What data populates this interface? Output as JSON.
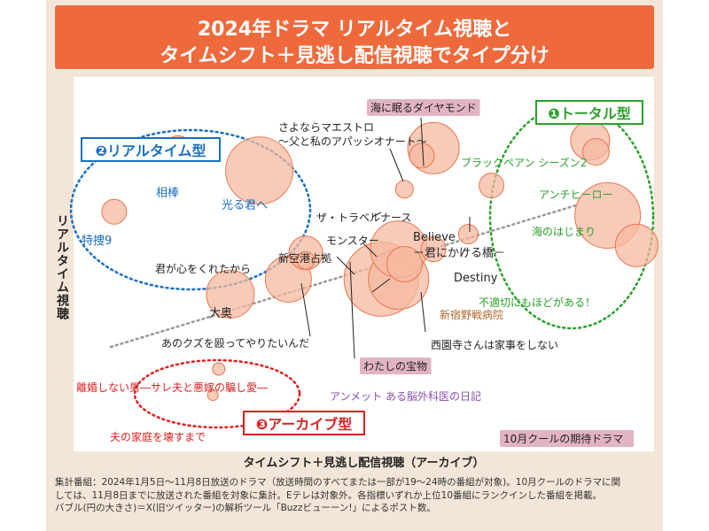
{
  "title": {
    "line1": "2024年ドラマ リアルタイム視聴と",
    "line2": "タイムシフト＋見逃し配信視聴でタイプ分け"
  },
  "footnote": {
    "line1": "集計番組：2024年1月5日～11月8日放送のドラマ（放送時間のすべてまたは一部が19～24時の番組が対象)。10月クールのドラマに関",
    "line2": "しては、11月8日までに放送された番組を対象に集計。Eテレは対象外。各指標いずれか上位10番組にランクインした番組を掲載。",
    "line3": "バブル(円の大きさ)＝X(旧ツイッター)の解析ツール「Buzzビューーン!」によるポスト数。"
  },
  "colors": {
    "title_bg": "#ee6a3c",
    "bubble_fill": "#f6b9a0",
    "bubble_stroke": "#e8754f",
    "realtime": "#1a6fc0",
    "total": "#2aa02a",
    "archive": "#dd2020",
    "purple": "#8a4fb0",
    "brown": "#b0682e",
    "pink_box": "#e2b4c2"
  },
  "chart_data": {
    "type": "bubble",
    "xlabel": "タイムシフト＋見逃し配信視聴（アーカイブ）",
    "ylabel": "リアルタイム視聴",
    "trend_line": "dotted",
    "groups": [
      {
        "label": "❷リアルタイム型",
        "color": "#1a6fc0"
      },
      {
        "label": "❶トータル型",
        "color": "#2aa02a"
      },
      {
        "label": "❸アーカイブ型",
        "color": "#dd2020"
      }
    ],
    "legend_box": "10月クールの期待ドラマ",
    "series": [
      {
        "name": "特捜9",
        "x": 0.07,
        "y": 0.64,
        "size": 14,
        "group": "realtime"
      },
      {
        "name": "相棒",
        "x": 0.18,
        "y": 0.81,
        "size": 14,
        "group": "realtime"
      },
      {
        "name": "光る君へ",
        "x": 0.32,
        "y": 0.75,
        "size": 38,
        "group": "realtime"
      },
      {
        "name": "大奥",
        "x": 0.27,
        "y": 0.42,
        "size": 27,
        "group": "other"
      },
      {
        "name": "君が心をくれたから",
        "x": 0.37,
        "y": 0.46,
        "size": 26,
        "group": "other"
      },
      {
        "name": "新空港占拠",
        "x": 0.4,
        "y": 0.53,
        "size": 19,
        "group": "other"
      },
      {
        "name": "あのクズを殴ってやりたいんだ",
        "x": 0.4,
        "y": 0.51,
        "size": 10,
        "group": "other"
      },
      {
        "name": "モンスター",
        "x": 0.56,
        "y": 0.54,
        "size": 32,
        "group": "other"
      },
      {
        "name": "わたしの宝物",
        "x": 0.53,
        "y": 0.46,
        "size": 42,
        "group": "other"
      },
      {
        "name": "アンメット ある脳外科医の日記",
        "x": 0.56,
        "y": 0.46,
        "size": 34,
        "group": "other"
      },
      {
        "name": "西園寺さんは家事をしない",
        "x": 0.57,
        "y": 0.5,
        "size": 20,
        "group": "other"
      },
      {
        "name": "新宿野戦病院",
        "x": 0.62,
        "y": 0.54,
        "size": 14,
        "group": "other"
      },
      {
        "name": "ザ・トラベルナース",
        "x": 0.57,
        "y": 0.7,
        "size": 10,
        "group": "other"
      },
      {
        "name": "海に眠るダイヤモンド",
        "x": 0.62,
        "y": 0.81,
        "size": 29,
        "group": "other"
      },
      {
        "name": "さよならマエストロ～父と私のアパッシオナート～",
        "x": 0.6,
        "y": 0.79,
        "size": 14,
        "group": "other"
      },
      {
        "name": "Believe－君にかける橋－",
        "x": 0.72,
        "y": 0.71,
        "size": 14,
        "group": "other"
      },
      {
        "name": "Destiny",
        "x": 0.68,
        "y": 0.58,
        "size": 11,
        "group": "other"
      },
      {
        "name": "ブラックペアン シーズン2",
        "x": 0.89,
        "y": 0.83,
        "size": 22,
        "group": "total"
      },
      {
        "name": "アンチヒーロー",
        "x": 0.9,
        "y": 0.8,
        "size": 15,
        "group": "total"
      },
      {
        "name": "海のはじまり",
        "x": 0.92,
        "y": 0.63,
        "size": 37,
        "group": "total"
      },
      {
        "name": "不適切にもほどがある！",
        "x": 0.97,
        "y": 0.55,
        "size": 24,
        "group": "total"
      },
      {
        "name": "離婚しない男―サレ夫と悪嫁の騙し愛―",
        "x": 0.25,
        "y": 0.22,
        "size": 7,
        "group": "archive"
      },
      {
        "name": "夫の家庭を壊すまで",
        "x": 0.24,
        "y": 0.15,
        "size": 6,
        "group": "archive"
      }
    ]
  }
}
